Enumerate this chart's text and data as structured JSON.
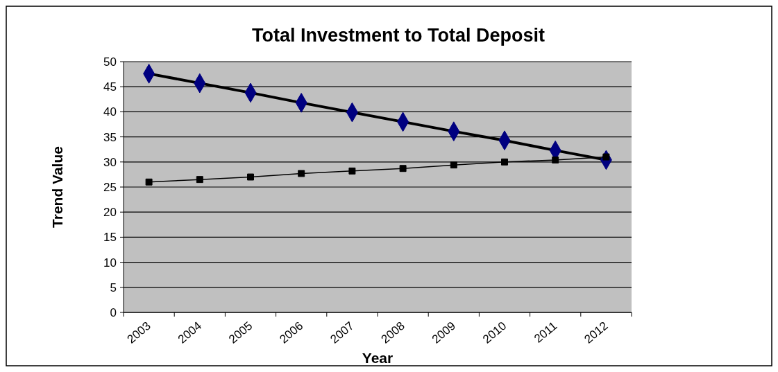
{
  "chart_data": {
    "type": "line",
    "title": "Total Investment  to Total Deposit",
    "xlabel": "Year",
    "ylabel": "Trend Value",
    "categories": [
      "2003",
      "2004",
      "2005",
      "2006",
      "2007",
      "2008",
      "2009",
      "2010",
      "2011",
      "2012"
    ],
    "series": [
      {
        "color": "#000080",
        "marker": "diamond",
        "values": [
          47.6,
          45.7,
          43.8,
          41.8,
          39.9,
          38.0,
          36.1,
          34.3,
          32.3,
          30.4
        ]
      },
      {
        "color": "#000000",
        "marker": "square",
        "values": [
          26.0,
          26.5,
          27.0,
          27.7,
          28.2,
          28.7,
          29.4,
          30.0,
          30.4,
          31.0
        ]
      }
    ],
    "ylim": [
      0,
      50
    ],
    "yticks": [
      0,
      5,
      10,
      15,
      20,
      25,
      30,
      35,
      40,
      45,
      50
    ],
    "grid": "y"
  }
}
